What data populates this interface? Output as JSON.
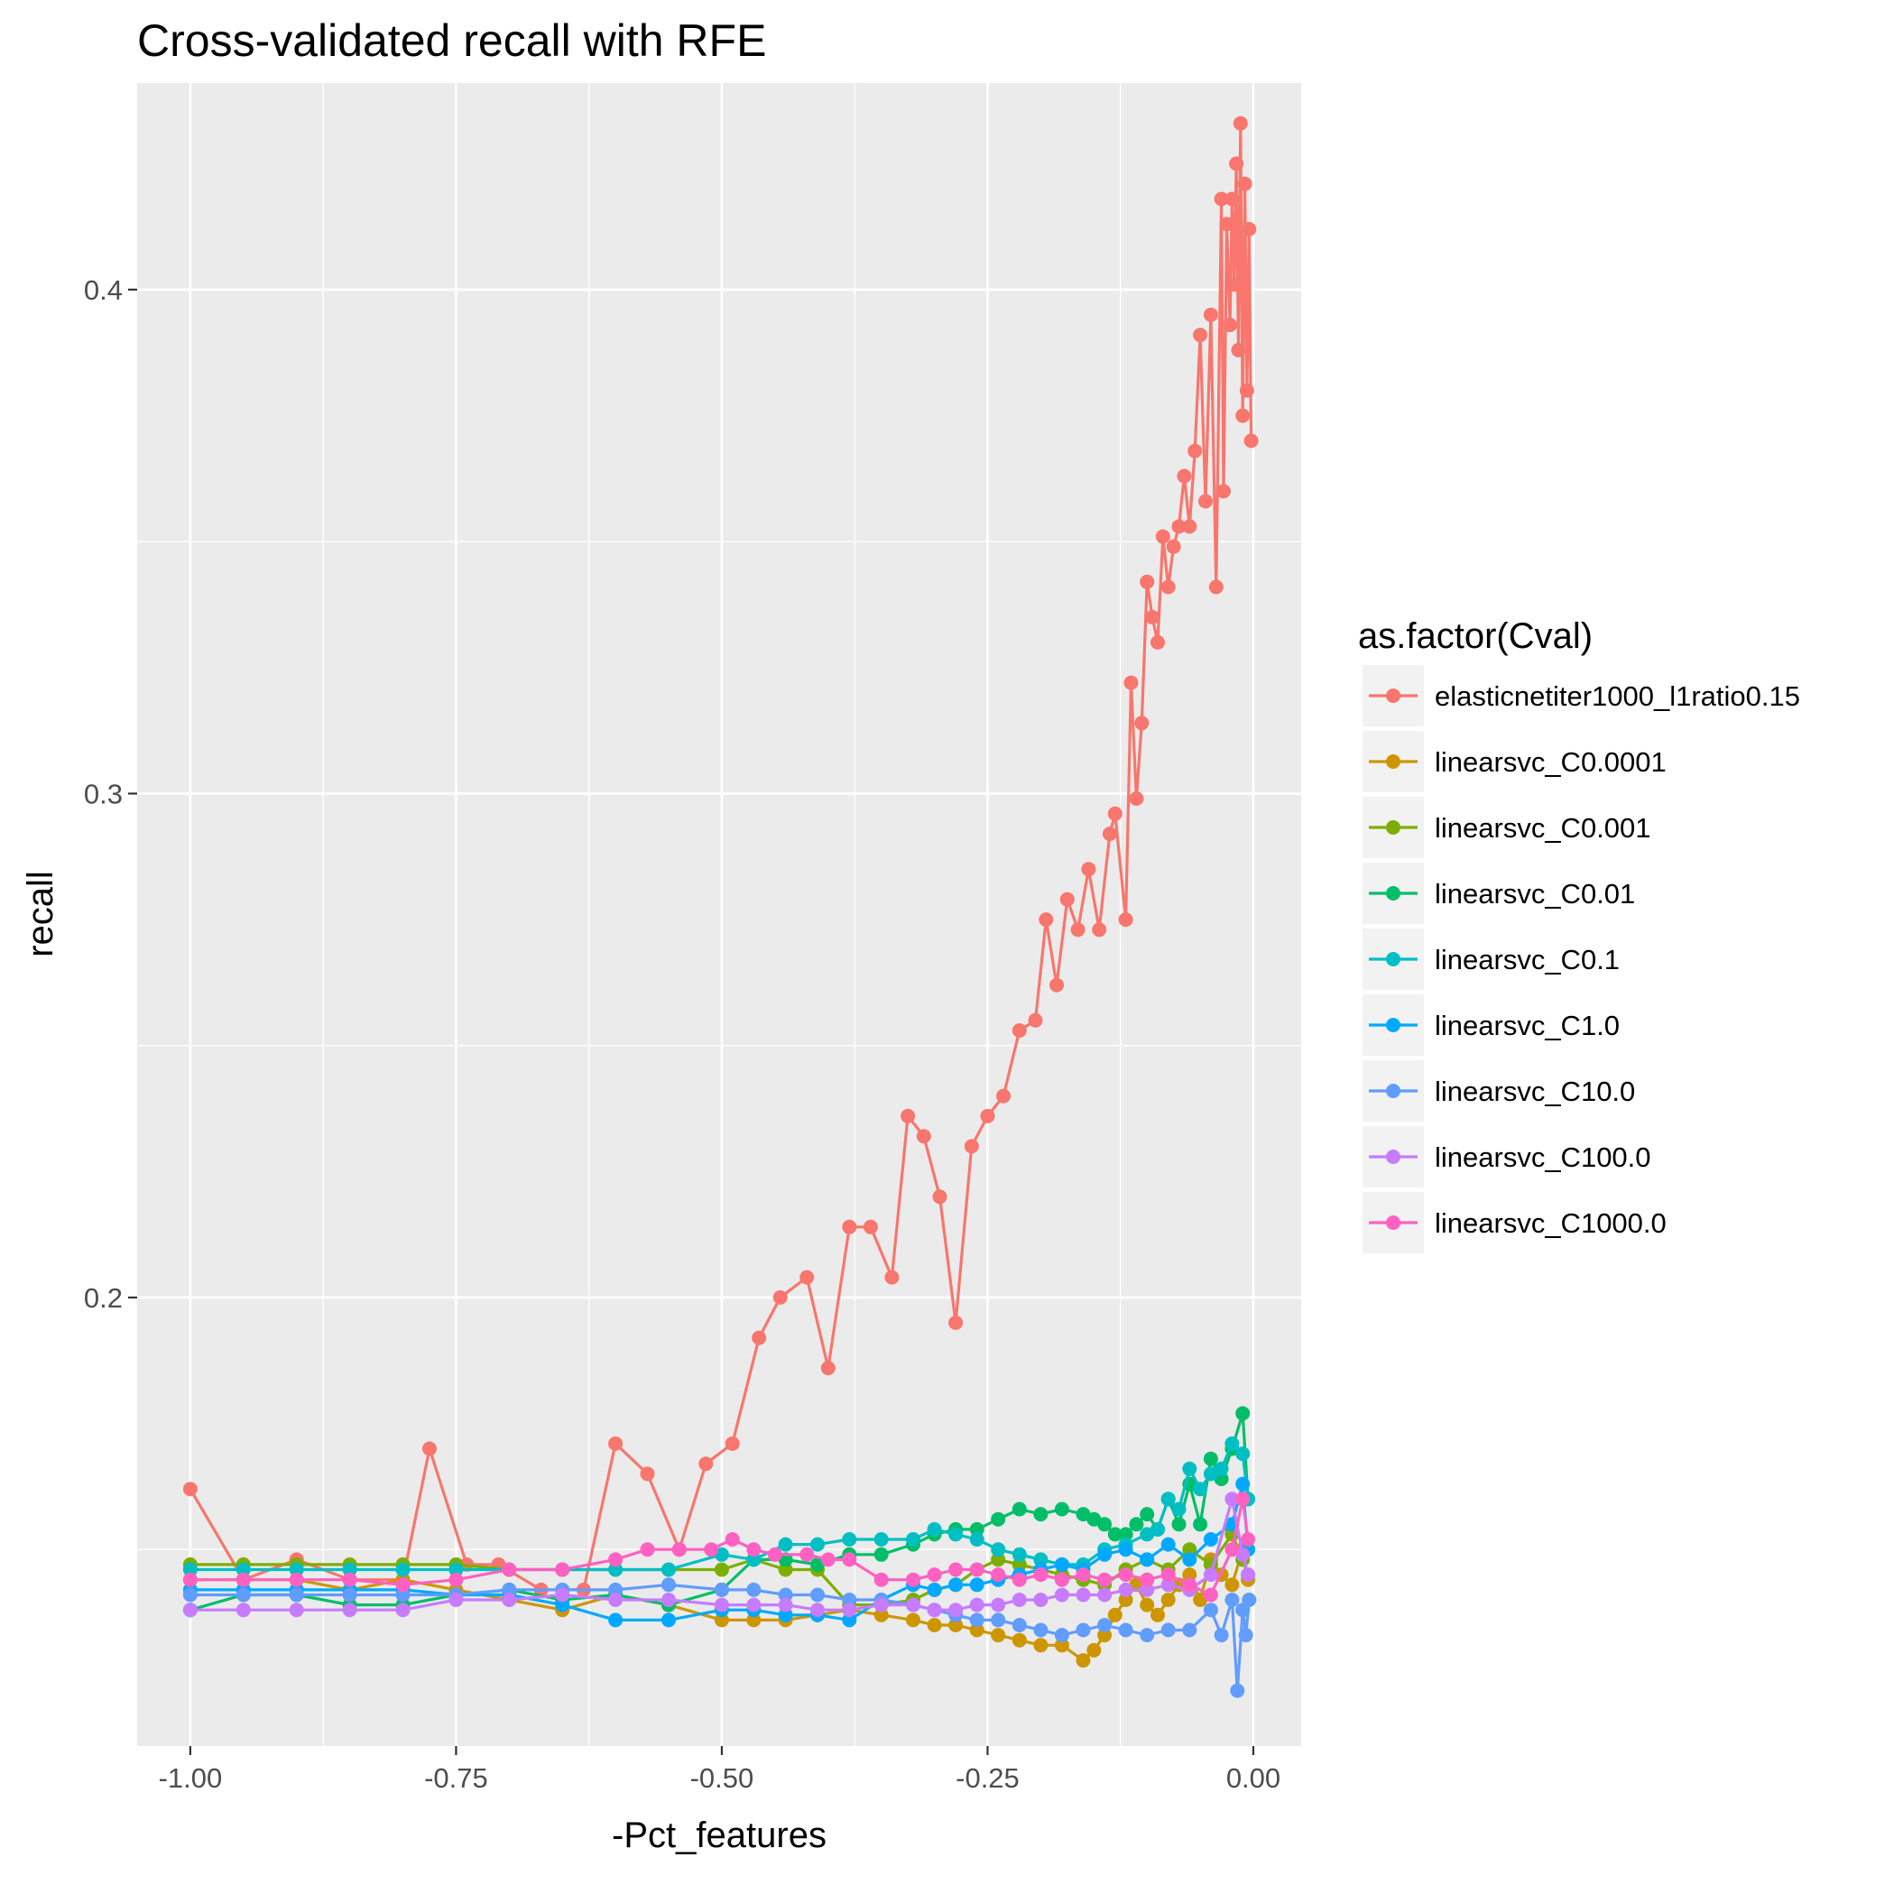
{
  "chart_data": {
    "type": "line",
    "title": "Cross-validated recall with RFE",
    "xlabel": "-Pct_features",
    "ylabel": "recall",
    "xlim": [
      -1.05,
      0.045
    ],
    "ylim": [
      0.111,
      0.441
    ],
    "x_ticks": [
      -1.0,
      -0.75,
      -0.5,
      -0.25,
      0.0
    ],
    "x_tick_labels": [
      "-1.00",
      "-0.75",
      "-0.50",
      "-0.25",
      "0.00"
    ],
    "x_minor_ticks": [
      -0.875,
      -0.625,
      -0.375,
      -0.125
    ],
    "y_ticks": [
      0.2,
      0.3,
      0.4
    ],
    "y_tick_labels": [
      "0.2",
      "0.3",
      "0.4"
    ],
    "y_minor_ticks": [
      0.15,
      0.25,
      0.35
    ],
    "grid": true,
    "legend": {
      "title": "as.factor(Cval)",
      "position": "right"
    },
    "series": [
      {
        "name": "elasticnetiter1000_l1ratio0.15",
        "color": "#F8766D",
        "x": [
          -1.0,
          -0.95,
          -0.9,
          -0.85,
          -0.8,
          -0.775,
          -0.74,
          -0.71,
          -0.67,
          -0.63,
          -0.6,
          -0.57,
          -0.54,
          -0.515,
          -0.49,
          -0.465,
          -0.445,
          -0.42,
          -0.4,
          -0.38,
          -0.36,
          -0.34,
          -0.325,
          -0.31,
          -0.295,
          -0.28,
          -0.265,
          -0.25,
          -0.235,
          -0.22,
          -0.205,
          -0.195,
          -0.185,
          -0.175,
          -0.165,
          -0.155,
          -0.145,
          -0.135,
          -0.13,
          -0.12,
          -0.115,
          -0.11,
          -0.105,
          -0.1,
          -0.095,
          -0.09,
          -0.085,
          -0.08,
          -0.075,
          -0.07,
          -0.065,
          -0.06,
          -0.055,
          -0.05,
          -0.045,
          -0.04,
          -0.035,
          -0.03,
          -0.028,
          -0.025,
          -0.022,
          -0.02,
          -0.018,
          -0.016,
          -0.014,
          -0.012,
          -0.01,
          -0.008,
          -0.006,
          -0.004,
          -0.002
        ],
        "y": [
          0.162,
          0.144,
          0.148,
          0.144,
          0.144,
          0.17,
          0.147,
          0.147,
          0.142,
          0.142,
          0.171,
          0.165,
          0.15,
          0.167,
          0.171,
          0.192,
          0.2,
          0.204,
          0.186,
          0.214,
          0.214,
          0.204,
          0.236,
          0.232,
          0.22,
          0.195,
          0.23,
          0.236,
          0.24,
          0.253,
          0.255,
          0.275,
          0.262,
          0.279,
          0.273,
          0.285,
          0.273,
          0.292,
          0.296,
          0.275,
          0.322,
          0.299,
          0.314,
          0.342,
          0.335,
          0.33,
          0.351,
          0.341,
          0.349,
          0.353,
          0.363,
          0.353,
          0.368,
          0.391,
          0.358,
          0.395,
          0.341,
          0.418,
          0.36,
          0.413,
          0.393,
          0.418,
          0.401,
          0.425,
          0.388,
          0.433,
          0.375,
          0.421,
          0.38,
          0.412,
          0.37
        ]
      },
      {
        "name": "linearsvc_C0.0001",
        "color": "#CD9600",
        "x": [
          -1.0,
          -0.95,
          -0.9,
          -0.85,
          -0.8,
          -0.75,
          -0.7,
          -0.65,
          -0.6,
          -0.55,
          -0.5,
          -0.47,
          -0.44,
          -0.41,
          -0.38,
          -0.35,
          -0.32,
          -0.3,
          -0.28,
          -0.26,
          -0.24,
          -0.22,
          -0.2,
          -0.18,
          -0.16,
          -0.15,
          -0.14,
          -0.13,
          -0.12,
          -0.11,
          -0.1,
          -0.09,
          -0.08,
          -0.07,
          -0.06,
          -0.05,
          -0.04,
          -0.03,
          -0.02,
          -0.01,
          -0.005
        ],
        "y": [
          0.144,
          0.144,
          0.144,
          0.142,
          0.144,
          0.142,
          0.14,
          0.138,
          0.141,
          0.139,
          0.136,
          0.136,
          0.136,
          0.137,
          0.138,
          0.137,
          0.136,
          0.135,
          0.135,
          0.134,
          0.133,
          0.132,
          0.131,
          0.131,
          0.128,
          0.13,
          0.133,
          0.137,
          0.14,
          0.143,
          0.139,
          0.137,
          0.14,
          0.143,
          0.145,
          0.14,
          0.148,
          0.145,
          0.143,
          0.15,
          0.144
        ]
      },
      {
        "name": "linearsvc_C0.001",
        "color": "#7CAE00",
        "x": [
          -1.0,
          -0.95,
          -0.9,
          -0.85,
          -0.8,
          -0.75,
          -0.7,
          -0.65,
          -0.6,
          -0.55,
          -0.5,
          -0.47,
          -0.44,
          -0.41,
          -0.38,
          -0.35,
          -0.32,
          -0.3,
          -0.28,
          -0.26,
          -0.24,
          -0.22,
          -0.2,
          -0.18,
          -0.16,
          -0.14,
          -0.12,
          -0.1,
          -0.08,
          -0.06,
          -0.04,
          -0.02,
          -0.01,
          -0.005
        ],
        "y": [
          0.147,
          0.147,
          0.147,
          0.147,
          0.147,
          0.147,
          0.146,
          0.146,
          0.146,
          0.146,
          0.146,
          0.148,
          0.146,
          0.146,
          0.139,
          0.139,
          0.14,
          0.142,
          0.143,
          0.146,
          0.148,
          0.147,
          0.146,
          0.145,
          0.144,
          0.143,
          0.146,
          0.148,
          0.146,
          0.15,
          0.147,
          0.153,
          0.148,
          0.145
        ]
      },
      {
        "name": "linearsvc_C0.01",
        "color": "#00BE67",
        "x": [
          -1.0,
          -0.95,
          -0.9,
          -0.85,
          -0.8,
          -0.75,
          -0.7,
          -0.65,
          -0.6,
          -0.55,
          -0.5,
          -0.47,
          -0.44,
          -0.41,
          -0.38,
          -0.35,
          -0.32,
          -0.3,
          -0.28,
          -0.26,
          -0.24,
          -0.22,
          -0.2,
          -0.18,
          -0.16,
          -0.15,
          -0.14,
          -0.13,
          -0.12,
          -0.11,
          -0.1,
          -0.09,
          -0.08,
          -0.07,
          -0.06,
          -0.05,
          -0.04,
          -0.03,
          -0.02,
          -0.01,
          -0.005
        ],
        "y": [
          0.138,
          0.141,
          0.141,
          0.139,
          0.139,
          0.141,
          0.142,
          0.14,
          0.141,
          0.139,
          0.142,
          0.148,
          0.148,
          0.147,
          0.149,
          0.149,
          0.151,
          0.153,
          0.154,
          0.154,
          0.156,
          0.158,
          0.157,
          0.158,
          0.157,
          0.156,
          0.155,
          0.153,
          0.153,
          0.155,
          0.157,
          0.154,
          0.16,
          0.155,
          0.163,
          0.155,
          0.168,
          0.164,
          0.17,
          0.177,
          0.16
        ]
      },
      {
        "name": "linearsvc_C0.1",
        "color": "#00BFC4",
        "x": [
          -1.0,
          -0.95,
          -0.9,
          -0.85,
          -0.8,
          -0.75,
          -0.7,
          -0.65,
          -0.6,
          -0.55,
          -0.5,
          -0.47,
          -0.44,
          -0.41,
          -0.38,
          -0.35,
          -0.32,
          -0.3,
          -0.28,
          -0.26,
          -0.24,
          -0.22,
          -0.2,
          -0.18,
          -0.16,
          -0.14,
          -0.12,
          -0.1,
          -0.09,
          -0.08,
          -0.07,
          -0.06,
          -0.05,
          -0.04,
          -0.03,
          -0.02,
          -0.01,
          -0.005
        ],
        "y": [
          0.146,
          0.146,
          0.146,
          0.146,
          0.146,
          0.146,
          0.146,
          0.146,
          0.146,
          0.146,
          0.149,
          0.148,
          0.151,
          0.151,
          0.152,
          0.152,
          0.152,
          0.154,
          0.153,
          0.152,
          0.15,
          0.149,
          0.148,
          0.147,
          0.147,
          0.15,
          0.151,
          0.153,
          0.154,
          0.16,
          0.158,
          0.166,
          0.162,
          0.165,
          0.166,
          0.171,
          0.169,
          0.16
        ]
      },
      {
        "name": "linearsvc_C1.0",
        "color": "#00A9FF",
        "x": [
          -1.0,
          -0.95,
          -0.9,
          -0.85,
          -0.8,
          -0.75,
          -0.7,
          -0.65,
          -0.6,
          -0.55,
          -0.5,
          -0.47,
          -0.44,
          -0.41,
          -0.38,
          -0.35,
          -0.32,
          -0.3,
          -0.28,
          -0.26,
          -0.24,
          -0.22,
          -0.2,
          -0.18,
          -0.16,
          -0.14,
          -0.12,
          -0.1,
          -0.08,
          -0.06,
          -0.04,
          -0.02,
          -0.01,
          -0.005
        ],
        "y": [
          0.142,
          0.142,
          0.142,
          0.142,
          0.142,
          0.141,
          0.141,
          0.139,
          0.136,
          0.136,
          0.138,
          0.138,
          0.137,
          0.137,
          0.136,
          0.14,
          0.143,
          0.142,
          0.143,
          0.143,
          0.144,
          0.145,
          0.146,
          0.147,
          0.146,
          0.149,
          0.15,
          0.148,
          0.151,
          0.148,
          0.152,
          0.155,
          0.163,
          0.15
        ]
      },
      {
        "name": "linearsvc_C10.0",
        "color": "#619CFF",
        "x": [
          -1.0,
          -0.95,
          -0.9,
          -0.85,
          -0.8,
          -0.75,
          -0.7,
          -0.65,
          -0.6,
          -0.55,
          -0.5,
          -0.47,
          -0.44,
          -0.41,
          -0.38,
          -0.35,
          -0.32,
          -0.3,
          -0.28,
          -0.26,
          -0.24,
          -0.22,
          -0.2,
          -0.18,
          -0.16,
          -0.14,
          -0.12,
          -0.1,
          -0.08,
          -0.06,
          -0.04,
          -0.03,
          -0.02,
          -0.015,
          -0.01,
          -0.007,
          -0.004
        ],
        "y": [
          0.141,
          0.141,
          0.141,
          0.141,
          0.141,
          0.141,
          0.142,
          0.142,
          0.142,
          0.143,
          0.142,
          0.142,
          0.141,
          0.141,
          0.14,
          0.14,
          0.139,
          0.138,
          0.137,
          0.136,
          0.136,
          0.135,
          0.134,
          0.133,
          0.134,
          0.135,
          0.134,
          0.133,
          0.134,
          0.134,
          0.138,
          0.133,
          0.14,
          0.122,
          0.138,
          0.133,
          0.14
        ]
      },
      {
        "name": "linearsvc_C100.0",
        "color": "#C77CFF",
        "x": [
          -1.0,
          -0.95,
          -0.9,
          -0.85,
          -0.8,
          -0.75,
          -0.7,
          -0.65,
          -0.6,
          -0.55,
          -0.5,
          -0.47,
          -0.44,
          -0.41,
          -0.38,
          -0.35,
          -0.32,
          -0.3,
          -0.28,
          -0.26,
          -0.24,
          -0.22,
          -0.2,
          -0.18,
          -0.16,
          -0.14,
          -0.12,
          -0.1,
          -0.08,
          -0.06,
          -0.04,
          -0.02,
          -0.01,
          -0.005
        ],
        "y": [
          0.138,
          0.138,
          0.138,
          0.138,
          0.138,
          0.14,
          0.14,
          0.141,
          0.14,
          0.14,
          0.139,
          0.139,
          0.139,
          0.138,
          0.138,
          0.139,
          0.139,
          0.138,
          0.138,
          0.139,
          0.139,
          0.14,
          0.14,
          0.141,
          0.141,
          0.141,
          0.142,
          0.142,
          0.143,
          0.142,
          0.145,
          0.16,
          0.149,
          0.145
        ]
      },
      {
        "name": "linearsvc_C1000.0",
        "color": "#FF61C3",
        "x": [
          -1.0,
          -0.95,
          -0.9,
          -0.85,
          -0.8,
          -0.75,
          -0.7,
          -0.65,
          -0.6,
          -0.57,
          -0.54,
          -0.51,
          -0.49,
          -0.47,
          -0.45,
          -0.42,
          -0.4,
          -0.38,
          -0.35,
          -0.32,
          -0.3,
          -0.28,
          -0.26,
          -0.24,
          -0.22,
          -0.2,
          -0.18,
          -0.16,
          -0.14,
          -0.12,
          -0.1,
          -0.08,
          -0.06,
          -0.04,
          -0.02,
          -0.01,
          -0.005
        ],
        "y": [
          0.144,
          0.144,
          0.144,
          0.144,
          0.143,
          0.144,
          0.146,
          0.146,
          0.148,
          0.15,
          0.15,
          0.15,
          0.152,
          0.15,
          0.149,
          0.149,
          0.148,
          0.148,
          0.144,
          0.144,
          0.145,
          0.146,
          0.146,
          0.145,
          0.144,
          0.145,
          0.144,
          0.145,
          0.144,
          0.145,
          0.144,
          0.145,
          0.143,
          0.141,
          0.15,
          0.16,
          0.152
        ]
      }
    ]
  }
}
